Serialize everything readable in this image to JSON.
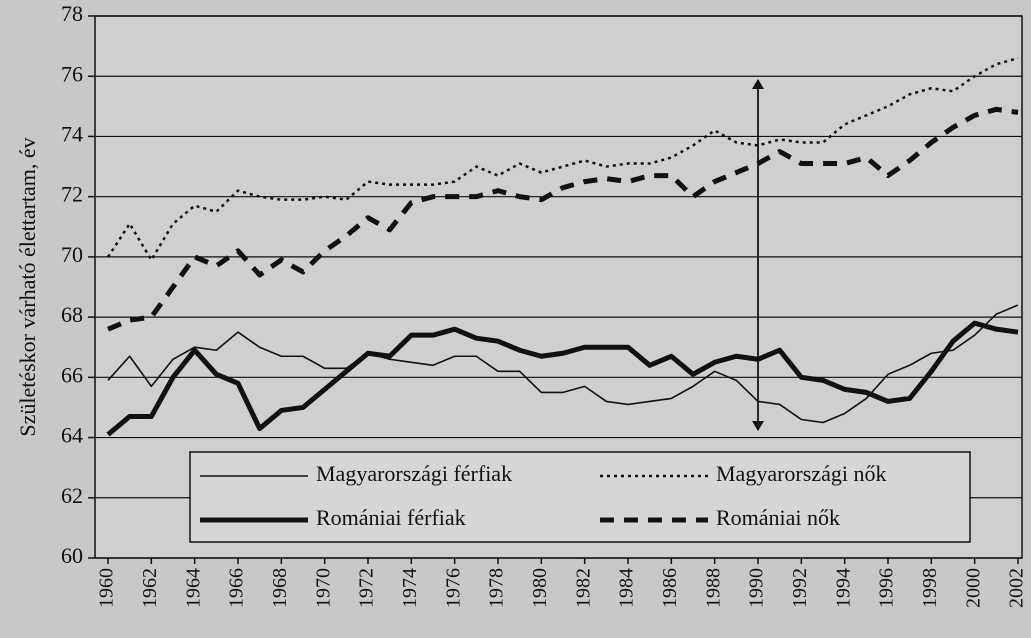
{
  "chart_data": {
    "type": "line",
    "y_label": "Születéskor várható élettartam, év",
    "x": [
      1960,
      1961,
      1962,
      1963,
      1964,
      1965,
      1966,
      1967,
      1968,
      1969,
      1970,
      1971,
      1972,
      1973,
      1974,
      1975,
      1976,
      1977,
      1978,
      1979,
      1980,
      1981,
      1982,
      1983,
      1984,
      1985,
      1986,
      1987,
      1988,
      1989,
      1990,
      1991,
      1992,
      1993,
      1994,
      1995,
      1996,
      1997,
      1998,
      1999,
      2000,
      2001,
      2002
    ],
    "xlim": [
      1960,
      2002
    ],
    "xticks": [
      1960,
      1962,
      1964,
      1966,
      1968,
      1970,
      1972,
      1974,
      1976,
      1978,
      1980,
      1982,
      1984,
      1986,
      1988,
      1990,
      1992,
      1994,
      1996,
      1998,
      2000,
      2002
    ],
    "ylim": [
      60,
      78
    ],
    "yticks": [
      60,
      62,
      64,
      66,
      68,
      70,
      72,
      74,
      76,
      78
    ],
    "grid": true,
    "series": [
      {
        "name": "Magyarországi férfiak",
        "color": "#111111",
        "style": "thin",
        "values": [
          65.9,
          66.7,
          65.7,
          66.6,
          67.0,
          66.9,
          67.5,
          67.0,
          66.7,
          66.7,
          66.3,
          66.3,
          66.8,
          66.6,
          66.5,
          66.4,
          66.7,
          66.7,
          66.2,
          66.2,
          65.5,
          65.5,
          65.7,
          65.2,
          65.1,
          65.2,
          65.3,
          65.7,
          66.2,
          65.9,
          65.2,
          65.1,
          64.6,
          64.5,
          64.8,
          65.3,
          66.1,
          66.4,
          66.8,
          66.9,
          67.4,
          68.1,
          68.4
        ]
      },
      {
        "name": "Magyarországi nők",
        "color": "#111111",
        "style": "dotted",
        "values": [
          70.0,
          71.1,
          69.9,
          71.1,
          71.7,
          71.5,
          72.2,
          72.0,
          71.9,
          71.9,
          72.0,
          71.9,
          72.5,
          72.4,
          72.4,
          72.4,
          72.5,
          73.0,
          72.7,
          73.1,
          72.8,
          73.0,
          73.2,
          73.0,
          73.1,
          73.1,
          73.3,
          73.7,
          74.2,
          73.8,
          73.7,
          73.9,
          73.8,
          73.8,
          74.4,
          74.7,
          75.0,
          75.4,
          75.6,
          75.5,
          76.0,
          76.4,
          76.6
        ]
      },
      {
        "name": "Romániai férfiak",
        "color": "#111111",
        "style": "thick",
        "values": [
          64.1,
          64.7,
          64.7,
          66.0,
          66.9,
          66.1,
          65.8,
          64.3,
          64.9,
          65.0,
          65.6,
          66.2,
          66.8,
          66.7,
          67.4,
          67.4,
          67.6,
          67.3,
          67.2,
          66.9,
          66.7,
          66.8,
          67.0,
          67.0,
          67.0,
          66.4,
          66.7,
          66.1,
          66.5,
          66.7,
          66.6,
          66.9,
          66.0,
          65.9,
          65.6,
          65.5,
          65.2,
          65.3,
          66.2,
          67.2,
          67.8,
          67.6,
          67.5
        ]
      },
      {
        "name": "Romániai nők",
        "color": "#111111",
        "style": "dashed",
        "values": [
          67.6,
          67.9,
          68.0,
          69.0,
          70.0,
          69.7,
          70.2,
          69.4,
          69.9,
          69.5,
          70.2,
          70.7,
          71.3,
          70.9,
          71.8,
          72.0,
          72.0,
          72.0,
          72.2,
          72.0,
          71.9,
          72.3,
          72.5,
          72.6,
          72.5,
          72.7,
          72.7,
          72.0,
          72.5,
          72.8,
          73.1,
          73.5,
          73.1,
          73.1,
          73.1,
          73.3,
          72.7,
          73.2,
          73.8,
          74.3,
          74.7,
          74.9,
          74.8
        ]
      }
    ]
  }
}
